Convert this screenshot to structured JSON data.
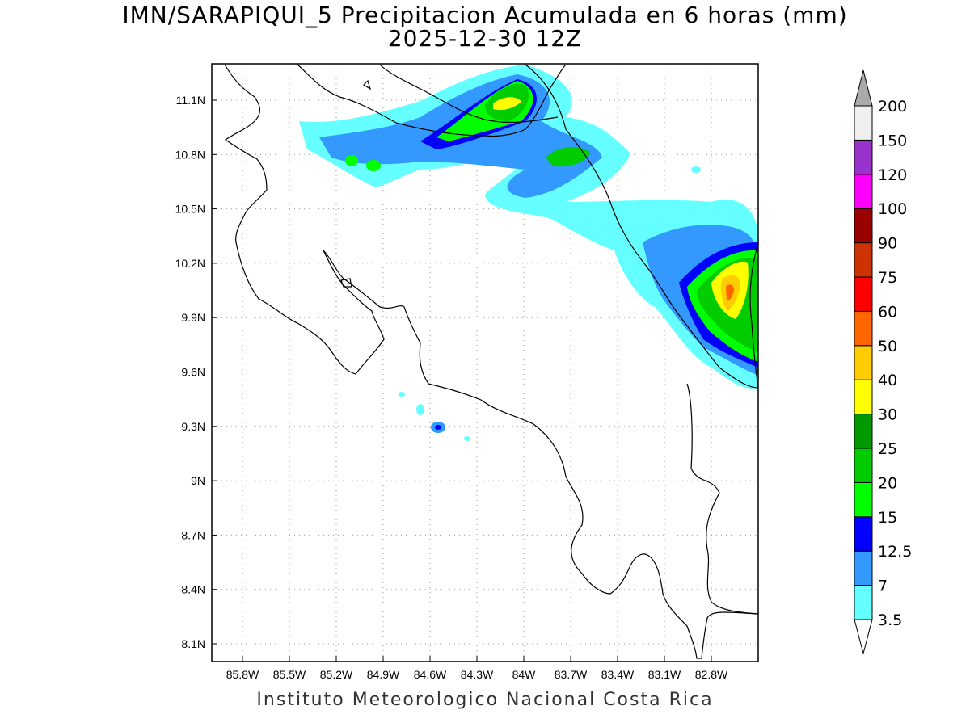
{
  "header": {
    "title": "IMN/SARAPIQUI_5 Precipitacion Acumulada en 6 horas (mm)",
    "subtitle": "2025-12-30 12Z"
  },
  "footer": {
    "credit": "Instituto Meteorologico Nacional Costa Rica"
  },
  "map": {
    "lat_ticks": [
      "11.1N",
      "10.8N",
      "10.5N",
      "10.2N",
      "9.9N",
      "9.6N",
      "9.3N",
      "9N",
      "8.7N",
      "8.4N",
      "8.1N"
    ],
    "lon_ticks": [
      "85.8W",
      "85.5W",
      "85.2W",
      "84.9W",
      "84.6W",
      "84.3W",
      "84W",
      "83.7W",
      "83.4W",
      "83.1W",
      "82.8W"
    ],
    "grid": "dotted"
  },
  "colorbar": {
    "levels": [
      "3.5",
      "7",
      "12.5",
      "15",
      "20",
      "25",
      "30",
      "40",
      "50",
      "60",
      "75",
      "90",
      "100",
      "120",
      "150",
      "200"
    ],
    "colors": [
      "#66ffff",
      "#3399ff",
      "#0000ff",
      "#00ff00",
      "#00cc00",
      "#009900",
      "#ffff00",
      "#ffcc00",
      "#ff6600",
      "#ff0000",
      "#cc3300",
      "#990000",
      "#ff00ff",
      "#9933cc",
      "#f0f0f0",
      "#aaaaaa"
    ]
  }
}
